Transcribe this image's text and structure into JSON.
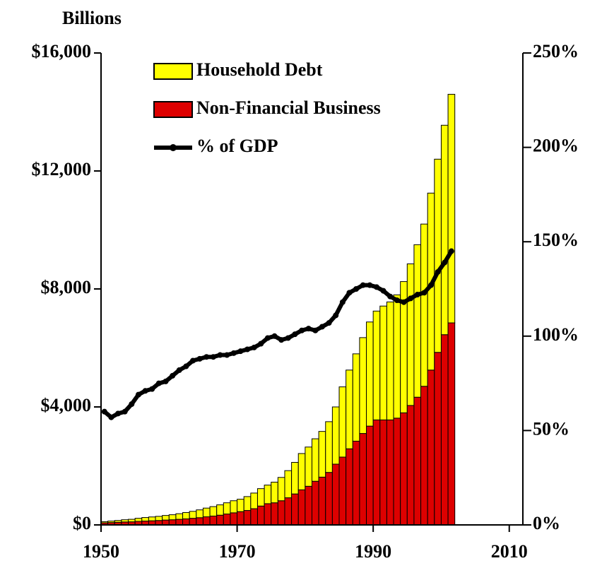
{
  "chart_data": {
    "type": "bar-line",
    "title": "Billions",
    "x": [
      1950,
      1951,
      1952,
      1953,
      1954,
      1955,
      1956,
      1957,
      1958,
      1959,
      1960,
      1961,
      1962,
      1963,
      1964,
      1965,
      1966,
      1967,
      1968,
      1969,
      1970,
      1971,
      1972,
      1973,
      1974,
      1975,
      1976,
      1977,
      1978,
      1979,
      1980,
      1981,
      1982,
      1983,
      1984,
      1985,
      1986,
      1987,
      1988,
      1989,
      1990,
      1991,
      1992,
      1993,
      1994,
      1995,
      1996,
      1997,
      1998,
      1999,
      2000,
      2001
    ],
    "series": [
      {
        "name": "Household Debt",
        "color": "#ffff00",
        "kind": "bar",
        "values": [
          40,
          50,
          60,
          75,
          85,
          105,
          120,
          130,
          140,
          155,
          170,
          190,
          215,
          235,
          265,
          295,
          320,
          350,
          380,
          410,
          420,
          470,
          530,
          590,
          630,
          700,
          790,
          920,
          1070,
          1230,
          1330,
          1440,
          1550,
          1720,
          1940,
          2380,
          2670,
          2960,
          3250,
          3530,
          3690,
          3860,
          4000,
          4180,
          4450,
          4800,
          5170,
          5500,
          6000,
          6550,
          7100,
          7750
        ]
      },
      {
        "name": "Non-Financial Business",
        "color": "#dd0000",
        "kind": "bar",
        "values": [
          70,
          80,
          90,
          100,
          105,
          120,
          130,
          140,
          150,
          165,
          175,
          190,
          205,
          225,
          245,
          275,
          300,
          330,
          370,
          410,
          450,
          490,
          550,
          640,
          720,
          750,
          820,
          920,
          1050,
          1190,
          1310,
          1480,
          1620,
          1780,
          2060,
          2300,
          2580,
          2840,
          3100,
          3350,
          3560,
          3560,
          3560,
          3620,
          3800,
          4050,
          4330,
          4700,
          5250,
          5850,
          6450,
          6850
        ]
      },
      {
        "name": "% of GDP",
        "color": "#000000",
        "kind": "line",
        "axis": "y2",
        "values": [
          60,
          57,
          59,
          60,
          64,
          69,
          71,
          72,
          75,
          76,
          79,
          82,
          84,
          87,
          88,
          89,
          89,
          90,
          90,
          91,
          92,
          93,
          94,
          96,
          99,
          100,
          98,
          99,
          101,
          103,
          104,
          103,
          105,
          107,
          111,
          118,
          123,
          125,
          127,
          127,
          126,
          124,
          121,
          119,
          118,
          120,
          122,
          123,
          127,
          134,
          139,
          145
        ]
      }
    ],
    "xlim": [
      1950,
      2012
    ],
    "xticks": [
      1950,
      1970,
      1990,
      2010
    ],
    "ylim": [
      0,
      16000
    ],
    "yticks": [
      {
        "value": 0,
        "label": "$0"
      },
      {
        "value": 4000,
        "label": "$4,000"
      },
      {
        "value": 8000,
        "label": "$8,000"
      },
      {
        "value": 12000,
        "label": "$12,000"
      },
      {
        "value": 16000,
        "label": "$16,000"
      }
    ],
    "y2lim": [
      0,
      250
    ],
    "y2ticks": [
      {
        "value": 0,
        "label": "0%"
      },
      {
        "value": 50,
        "label": "50%"
      },
      {
        "value": 100,
        "label": "100%"
      },
      {
        "value": 150,
        "label": "150%"
      },
      {
        "value": 200,
        "label": "200%"
      },
      {
        "value": 250,
        "label": "250%"
      }
    ]
  }
}
